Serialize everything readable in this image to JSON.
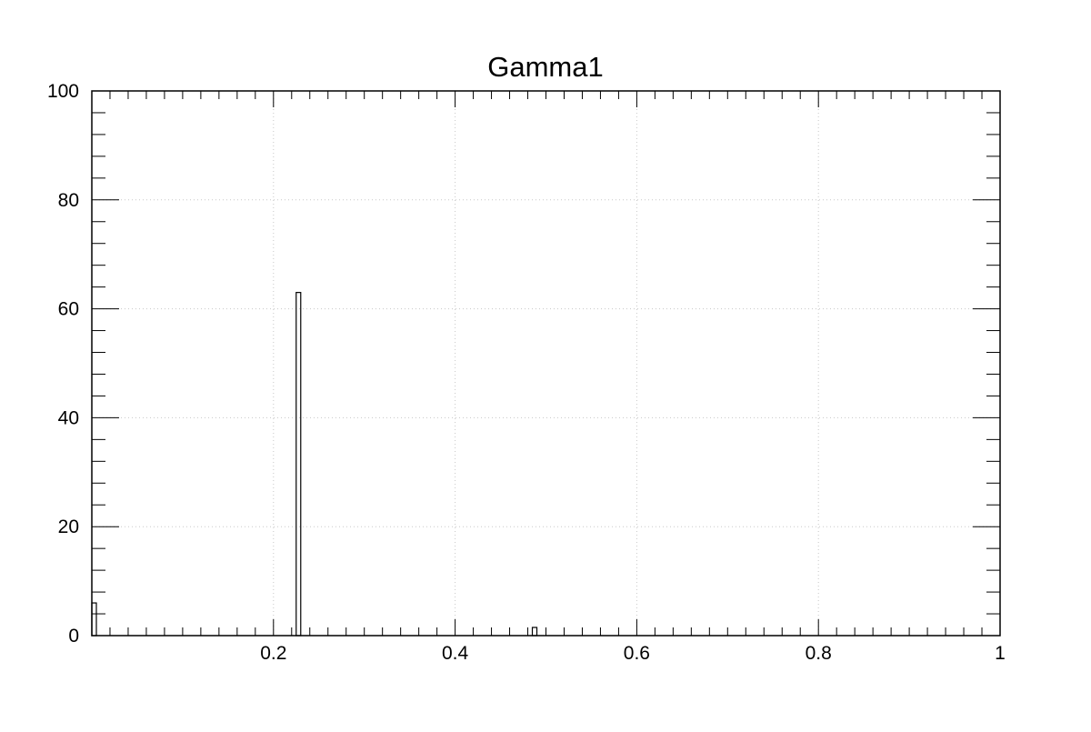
{
  "chart_data": {
    "type": "bar",
    "title": "Gamma1",
    "xlabel": "",
    "ylabel": "",
    "xlim": [
      0,
      1
    ],
    "ylim": [
      0,
      100
    ],
    "grid": true,
    "x_ticks": [
      0.2,
      0.4,
      0.6,
      0.8,
      1
    ],
    "x_tick_labels": [
      "0.2",
      "0.4",
      "0.6",
      "0.8",
      "1"
    ],
    "y_ticks": [
      0,
      20,
      40,
      60,
      80,
      100
    ],
    "y_tick_labels": [
      "0",
      "20",
      "40",
      "60",
      "80",
      "100"
    ],
    "bin_width": 0.005,
    "bins": [
      {
        "x0": 0.0,
        "x1": 0.005,
        "value": 6
      },
      {
        "x0": 0.225,
        "x1": 0.23,
        "value": 63
      },
      {
        "x0": 0.485,
        "x1": 0.49,
        "value": 1.5
      }
    ]
  }
}
